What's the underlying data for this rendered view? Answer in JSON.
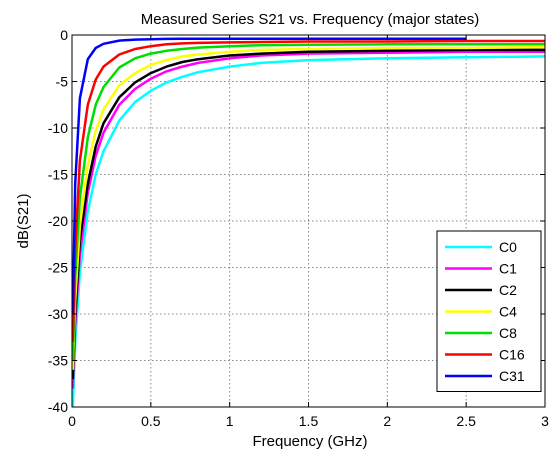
{
  "chart_data": {
    "type": "line",
    "title": "Measured Series S21 vs. Frequency (major states)",
    "xlabel": "Frequency (GHz)",
    "ylabel": "dB(S21)",
    "xlim": [
      0,
      3
    ],
    "ylim": [
      -40,
      0
    ],
    "xticks": [
      0,
      0.5,
      1,
      1.5,
      2,
      2.5,
      3
    ],
    "xtick_labels": [
      "0",
      "0.5",
      "1",
      "1.5",
      "2",
      "2.5",
      "3"
    ],
    "yticks": [
      0,
      -5,
      -10,
      -15,
      -20,
      -25,
      -30,
      -35,
      -40
    ],
    "ytick_labels": [
      "0",
      "-5",
      "-10",
      "-15",
      "-20",
      "-25",
      "-30",
      "-35",
      "-40"
    ],
    "grid": true,
    "legend_position": "bottom-right",
    "series": [
      {
        "name": "C0",
        "color": "#00ffff",
        "x": [
          0.005,
          0.02,
          0.05,
          0.1,
          0.15,
          0.2,
          0.3,
          0.4,
          0.5,
          0.6,
          0.7,
          0.8,
          1.0,
          1.2,
          1.5,
          2.0,
          2.5,
          3.0
        ],
        "y": [
          -40,
          -33,
          -25.5,
          -19,
          -15,
          -12.5,
          -9.2,
          -7.2,
          -6.0,
          -5.1,
          -4.5,
          -4.0,
          -3.4,
          -3.0,
          -2.7,
          -2.5,
          -2.4,
          -2.3
        ]
      },
      {
        "name": "C1",
        "color": "#ff00ff",
        "x": [
          0.005,
          0.02,
          0.05,
          0.1,
          0.15,
          0.2,
          0.3,
          0.4,
          0.5,
          0.6,
          0.7,
          0.8,
          1.0,
          1.2,
          1.5,
          2.0,
          2.5,
          3.0
        ],
        "y": [
          -38,
          -31,
          -23.5,
          -17,
          -13,
          -10.5,
          -7.5,
          -5.8,
          -4.7,
          -3.9,
          -3.4,
          -3.0,
          -2.5,
          -2.2,
          -2.0,
          -1.9,
          -1.8,
          -1.8
        ]
      },
      {
        "name": "C2",
        "color": "#000000",
        "x": [
          0.005,
          0.02,
          0.05,
          0.1,
          0.15,
          0.2,
          0.3,
          0.4,
          0.5,
          0.6,
          0.7,
          0.8,
          1.0,
          1.2,
          1.5,
          2.0,
          2.5,
          3.0
        ],
        "y": [
          -37,
          -30,
          -22,
          -16,
          -12,
          -9.5,
          -6.7,
          -5.1,
          -4.1,
          -3.4,
          -2.9,
          -2.6,
          -2.2,
          -2.0,
          -1.8,
          -1.7,
          -1.6,
          -1.6
        ]
      },
      {
        "name": "C4",
        "color": "#ffff00",
        "x": [
          0.005,
          0.02,
          0.05,
          0.1,
          0.15,
          0.2,
          0.3,
          0.4,
          0.5,
          0.6,
          0.7,
          0.8,
          1.0,
          1.2,
          1.5,
          2.0,
          2.5,
          3.0
        ],
        "y": [
          -36,
          -28.5,
          -20.5,
          -14,
          -10.3,
          -8.0,
          -5.4,
          -4.1,
          -3.2,
          -2.7,
          -2.3,
          -2.1,
          -1.8,
          -1.6,
          -1.5,
          -1.4,
          -1.4,
          -1.3
        ]
      },
      {
        "name": "C8",
        "color": "#00dd00",
        "x": [
          0.005,
          0.02,
          0.05,
          0.1,
          0.15,
          0.2,
          0.3,
          0.4,
          0.5,
          0.6,
          0.7,
          0.8,
          1.0,
          1.2,
          1.5,
          2.0,
          2.5,
          3.0
        ],
        "y": [
          -35,
          -26,
          -17.5,
          -11,
          -7.5,
          -5.6,
          -3.5,
          -2.5,
          -2.0,
          -1.7,
          -1.5,
          -1.35,
          -1.2,
          -1.1,
          -1.05,
          -1.0,
          -1.0,
          -1.0
        ]
      },
      {
        "name": "C16",
        "color": "#ff0000",
        "x": [
          0.005,
          0.02,
          0.05,
          0.1,
          0.15,
          0.2,
          0.3,
          0.4,
          0.5,
          0.6,
          0.7,
          0.8,
          1.0,
          1.2,
          1.5,
          2.0,
          2.5,
          3.0
        ],
        "y": [
          -33,
          -23,
          -13.5,
          -7.5,
          -4.8,
          -3.4,
          -2.1,
          -1.5,
          -1.2,
          -1.0,
          -0.9,
          -0.85,
          -0.8,
          -0.75,
          -0.7,
          -0.7,
          -0.65,
          -0.65
        ]
      },
      {
        "name": "C31",
        "color": "#0000ff",
        "x": [
          0.005,
          0.02,
          0.05,
          0.1,
          0.15,
          0.2,
          0.3,
          0.4,
          0.5,
          0.6,
          0.7,
          0.8,
          1.0,
          1.2,
          1.5,
          2.0,
          2.5
        ],
        "y": [
          -30,
          -16,
          -6.8,
          -2.6,
          -1.4,
          -0.95,
          -0.6,
          -0.5,
          -0.45,
          -0.42,
          -0.4,
          -0.4,
          -0.4,
          -0.4,
          -0.4,
          -0.4,
          -0.4
        ]
      }
    ]
  }
}
